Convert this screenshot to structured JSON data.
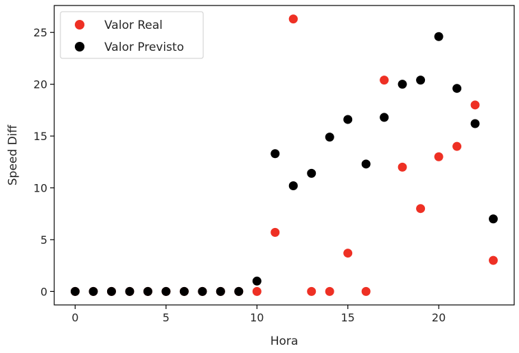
{
  "chart_data": {
    "type": "scatter",
    "title": "",
    "xlabel": "Hora",
    "ylabel": "Speed Diff",
    "xlim": [
      -1.15,
      24.15
    ],
    "ylim": [
      -1.3,
      27.6
    ],
    "xticks": [
      0,
      5,
      10,
      15,
      20
    ],
    "yticks": [
      0,
      5,
      10,
      15,
      20,
      25
    ],
    "grid": false,
    "legend_position": "top-left",
    "series": [
      {
        "name": "Valor Real",
        "color": "#ee3024",
        "x": [
          0,
          1,
          2,
          3,
          4,
          5,
          6,
          7,
          8,
          9,
          10,
          11,
          12,
          13,
          14,
          15,
          16,
          17,
          18,
          19,
          20,
          21,
          22,
          23
        ],
        "y": [
          0,
          0,
          0,
          0,
          0,
          0,
          0,
          0,
          0,
          0,
          0,
          5.7,
          26.3,
          0,
          0,
          3.7,
          0,
          20.4,
          12.0,
          8.0,
          13.0,
          14.0,
          18.0,
          3.0
        ]
      },
      {
        "name": "Valor Previsto",
        "color": "#000000",
        "x": [
          0,
          1,
          2,
          3,
          4,
          5,
          6,
          7,
          8,
          9,
          10,
          11,
          12,
          13,
          14,
          15,
          16,
          17,
          18,
          19,
          20,
          21,
          22,
          23
        ],
        "y": [
          0,
          0,
          0,
          0,
          0,
          0,
          0,
          0,
          0,
          0,
          1.0,
          13.3,
          10.2,
          11.4,
          14.9,
          16.6,
          12.3,
          16.8,
          20.0,
          20.4,
          24.6,
          19.6,
          16.2,
          7.0
        ]
      }
    ]
  }
}
